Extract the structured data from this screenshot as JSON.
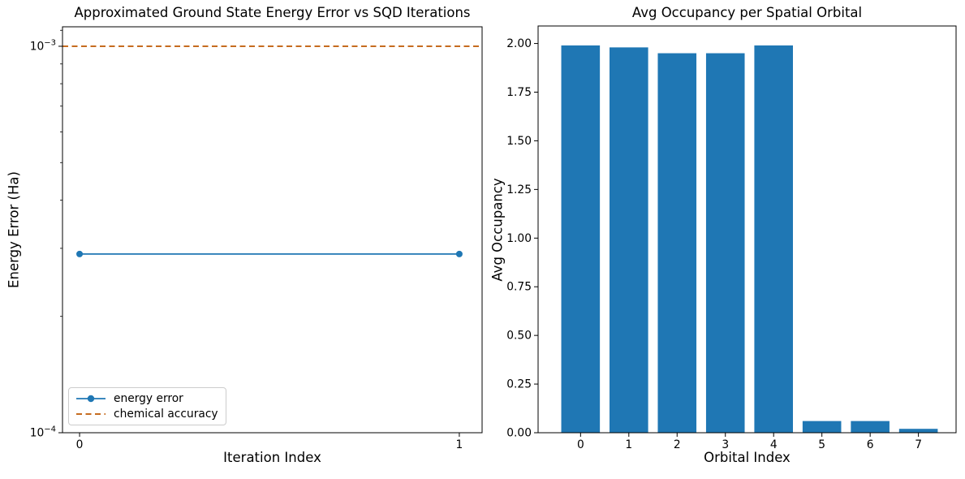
{
  "figure": {
    "background": "#ffffff",
    "text_color": "#000000",
    "spine_color": "#000000"
  },
  "chart_data": [
    {
      "type": "line",
      "title": "Approximated Ground State Energy Error vs SQD Iterations",
      "xlabel": "Iteration Index",
      "ylabel": "Energy Error (Ha)",
      "yscale": "log",
      "grid": false,
      "xlim": [
        -0.045,
        1.06
      ],
      "ylim": [
        0.0001,
        0.001123
      ],
      "xticks": [
        0,
        1
      ],
      "yticks": [
        {
          "value": 0.001,
          "label": "10^-3"
        },
        {
          "value": 0.0001,
          "label": "10^-4"
        }
      ],
      "yminorticks": [
        0.0002,
        0.0003,
        0.0004,
        0.0005,
        0.0006,
        0.0007,
        0.0008,
        0.0009,
        0.0011
      ],
      "series": [
        {
          "name": "energy error",
          "kind": "line-markers",
          "marker": "circle",
          "color": "#1f77b4",
          "x": [
            0,
            1
          ],
          "y": [
            0.00029,
            0.00029
          ]
        },
        {
          "name": "chemical accuracy",
          "kind": "hline",
          "linestyle": "dashed",
          "color": "#bf5700",
          "y": 0.001
        }
      ],
      "legend": {
        "location": "lower left",
        "items": [
          "energy error",
          "chemical accuracy"
        ]
      }
    },
    {
      "type": "bar",
      "title": "Avg Occupancy per Spatial Orbital",
      "xlabel": "Orbital Index",
      "ylabel": "Avg Occupancy",
      "grid": false,
      "bar_color": "#1f77b4",
      "bar_width": 0.8,
      "categories": [
        "0",
        "1",
        "2",
        "3",
        "4",
        "5",
        "6",
        "7"
      ],
      "values": [
        1.99,
        1.98,
        1.95,
        1.95,
        1.99,
        0.06,
        0.06,
        0.02
      ],
      "xlim": [
        -0.88,
        7.78
      ],
      "ylim": [
        0,
        2.09
      ],
      "yticks": [
        0,
        0.25,
        0.5,
        0.75,
        1.0,
        1.25,
        1.5,
        1.75,
        2.0
      ]
    }
  ]
}
